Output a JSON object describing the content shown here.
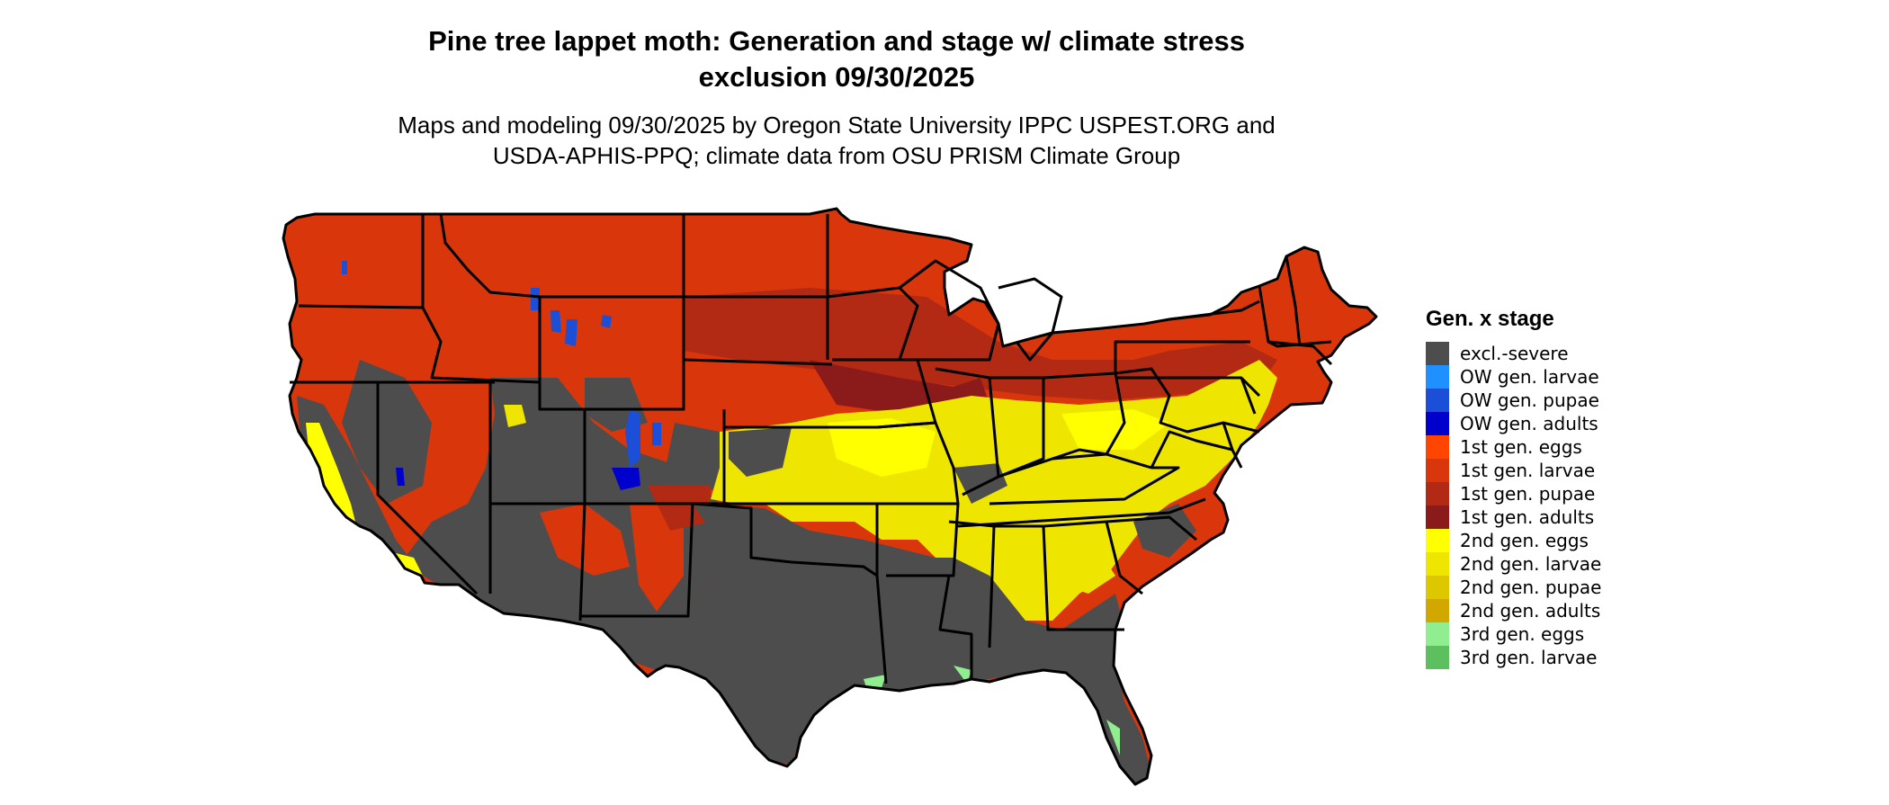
{
  "title": {
    "line1": "Pine tree lappet moth: Generation and stage w/ climate stress",
    "line2": "exclusion 09/30/2025"
  },
  "subtitle": {
    "line1": "Maps and modeling 09/30/2025 by Oregon State University IPPC USPEST.ORG and",
    "line2": "USDA-APHIS-PPQ; climate data from OSU PRISM Climate Group"
  },
  "legend": {
    "title": "Gen. x stage",
    "items": [
      {
        "label": "excl.-severe",
        "color": "#4d4d4d"
      },
      {
        "label": "OW gen. larvae",
        "color": "#1e90ff"
      },
      {
        "label": "OW gen. pupae",
        "color": "#1c4fd8"
      },
      {
        "label": "OW gen. adults",
        "color": "#0000cd"
      },
      {
        "label": "1st gen. eggs",
        "color": "#ff4500"
      },
      {
        "label": "1st gen. larvae",
        "color": "#d9360c"
      },
      {
        "label": "1st gen. pupae",
        "color": "#b22a14"
      },
      {
        "label": "1st gen. adults",
        "color": "#8b1a1a"
      },
      {
        "label": "2nd gen. eggs",
        "color": "#ffff00"
      },
      {
        "label": "2nd gen. larvae",
        "color": "#eee600"
      },
      {
        "label": "2nd gen. pupae",
        "color": "#ddc800"
      },
      {
        "label": "2nd gen. adults",
        "color": "#d2a800"
      },
      {
        "label": "3rd gen. eggs",
        "color": "#90ee90"
      },
      {
        "label": "3rd gen. larvae",
        "color": "#5dbf5d"
      }
    ]
  }
}
